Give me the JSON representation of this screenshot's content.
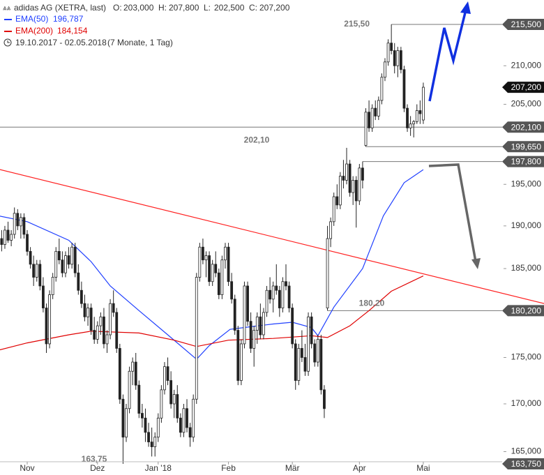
{
  "chart_data": {
    "type": "candlestick",
    "log": true,
    "header": {
      "title": "adidas AG (XETRA, last)",
      "quotes": [
        {
          "key": "O:",
          "label": "203,000"
        },
        {
          "key": "H:",
          "label": "207,800"
        },
        {
          "key": "L:",
          "label": "202,500"
        },
        {
          "key": "C:",
          "label": "207,200"
        }
      ],
      "range": "19.10.2017 - 02.05.2018",
      "period": "(7 Monate, 1 Tag)"
    },
    "ylim": [
      163.96,
      218.81
    ],
    "yticks": [
      {
        "value": 165,
        "label": "165,000"
      },
      {
        "value": 170,
        "label": "170,000"
      },
      {
        "value": 175,
        "label": "175,000"
      },
      {
        "value": 185,
        "label": "185,000"
      },
      {
        "value": 190,
        "label": "190,000"
      },
      {
        "value": 195,
        "label": "195,000"
      },
      {
        "value": 205,
        "label": "205,000"
      },
      {
        "value": 210,
        "label": "210,000"
      }
    ],
    "levels": [
      {
        "value": 215.5,
        "label": "215,500",
        "text": "215,50",
        "line": true
      },
      {
        "value": 202.1,
        "label": "202,100",
        "text": "202,10",
        "line": true
      },
      {
        "value": 199.65,
        "label": "199,650",
        "line": true
      },
      {
        "value": 197.8,
        "label": "197,800",
        "line": true
      },
      {
        "value": 180.2,
        "label": "180,200",
        "text": "180,20",
        "line": true
      },
      {
        "value": 163.75,
        "label": "163,750",
        "text": "163,75",
        "line": false
      }
    ],
    "categories": [
      null,
      null,
      null,
      null,
      null,
      null,
      null,
      null,
      null,
      "Nov",
      null,
      null,
      null,
      null,
      null,
      null,
      null,
      null,
      null,
      null,
      null,
      null,
      null,
      null,
      null,
      null,
      null,
      null,
      null,
      null,
      null,
      "Dez",
      null,
      null,
      null,
      null,
      null,
      null,
      null,
      null,
      null,
      null,
      null,
      null,
      null,
      null,
      null,
      null,
      null,
      null,
      "Jan '18",
      null,
      null,
      null,
      null,
      null,
      null,
      null,
      null,
      null,
      null,
      null,
      null,
      null,
      null,
      null,
      null,
      null,
      null,
      null,
      null,
      null,
      "Feb",
      null,
      null,
      null,
      null,
      null,
      null,
      null,
      null,
      null,
      null,
      null,
      null,
      null,
      null,
      null,
      null,
      null,
      null,
      null,
      "Mär",
      null,
      null,
      null,
      null,
      null,
      null,
      null,
      null,
      null,
      null,
      null,
      null,
      null,
      null,
      null,
      null,
      null,
      null,
      null,
      null,
      "Apr",
      null,
      null,
      null,
      null,
      null,
      null,
      null,
      null,
      null,
      null,
      null,
      null,
      null,
      null,
      null,
      null,
      null,
      null,
      null,
      "Mai"
    ],
    "open": [
      189.5,
      188.5,
      187.8,
      189.5,
      188.3,
      189,
      191.5,
      190,
      191,
      189,
      187,
      185.5,
      184,
      185.5,
      183,
      180.5,
      176.5,
      182,
      184,
      187,
      186,
      184.5,
      186.5,
      185.5,
      187.5,
      184.5,
      182.5,
      181,
      179.5,
      180.5,
      178,
      177,
      178.5,
      179.5,
      176.5,
      177.5,
      181,
      180,
      176,
      170.5,
      166.5,
      169.5,
      173.5,
      174.5,
      172,
      169,
      168.5,
      167,
      166,
      165.5,
      166.5,
      168.5,
      171.5,
      174,
      172.5,
      170,
      171,
      168.5,
      167,
      169.5,
      167.5,
      166.5,
      170.5,
      184,
      187.5,
      186,
      186.5,
      183.5,
      185.5,
      184.5,
      182,
      186,
      187.5,
      183.5,
      181.5,
      178,
      172.5,
      176.5,
      183,
      179,
      176,
      178,
      179.5,
      177.5,
      180,
      182.5,
      181.5,
      183,
      182.5,
      180.5,
      183.5,
      183,
      180.5,
      176.5,
      172.5,
      176,
      175,
      173.5,
      179.5,
      176.5,
      174.5,
      177,
      171.5,
      180.5,
      188.5,
      190.5,
      193.5,
      192.5,
      196,
      195.5,
      197.5,
      194,
      195.5,
      193,
      197,
      199.8,
      204,
      202,
      204.5,
      203.5,
      205.5,
      208.5,
      210.5,
      213,
      212,
      210,
      212,
      209.5,
      204.5,
      202,
      202.5,
      202.8,
      204.2,
      203
    ],
    "high": [
      191,
      189.5,
      190,
      190.5,
      189.5,
      192.2,
      192,
      191.5,
      191.5,
      189.5,
      187.5,
      186.5,
      186,
      186,
      184,
      181,
      182.5,
      184.5,
      187.5,
      188.5,
      187,
      187,
      187.5,
      188,
      188,
      185.5,
      183.5,
      182,
      181,
      181,
      179.5,
      179,
      180,
      180.5,
      178,
      181.5,
      182.5,
      180.5,
      176.5,
      171,
      170,
      174,
      175,
      175.5,
      172.5,
      170,
      169.5,
      168,
      167.5,
      167,
      169,
      172,
      174.5,
      175,
      173.5,
      171.5,
      172,
      169,
      170,
      170.5,
      168,
      171,
      184.5,
      188,
      188.5,
      187,
      187,
      186,
      187,
      185,
      186.5,
      188,
      188,
      184.5,
      182,
      178.5,
      177,
      183.5,
      183.5,
      180,
      178.5,
      180,
      181,
      180.5,
      183,
      184,
      183.5,
      185.5,
      183,
      184,
      185.5,
      183.5,
      181,
      177,
      176.5,
      178,
      176.5,
      180,
      180,
      177,
      177.5,
      177.5,
      172,
      190,
      191,
      194,
      195,
      196.5,
      198,
      199.5,
      198,
      196,
      196,
      197.5,
      197.8,
      204.5,
      205.5,
      205,
      205.5,
      206,
      209,
      211,
      213.5,
      215.5,
      213,
      212.5,
      212.5,
      210,
      205,
      203.5,
      203,
      205,
      205.5,
      207.8
    ],
    "low": [
      187.5,
      187,
      187.3,
      188,
      187.6,
      188.5,
      189.5,
      188.5,
      188.5,
      186.5,
      185,
      183,
      183.5,
      182.5,
      180,
      175.5,
      176,
      181.5,
      183.5,
      185.5,
      184,
      184,
      185,
      185,
      184,
      182,
      180.5,
      179,
      178.5,
      177.5,
      176.5,
      176.5,
      177.5,
      176,
      175.5,
      177,
      179.5,
      175.5,
      170,
      163.75,
      166,
      169,
      172,
      171.5,
      168.5,
      167.5,
      166,
      165.5,
      164.5,
      164.5,
      166,
      168,
      171,
      172,
      169.5,
      168.5,
      168,
      166.5,
      166.5,
      167,
      165.5,
      166,
      170,
      183.5,
      185.5,
      184,
      183,
      183,
      184,
      181.5,
      181.5,
      185,
      183,
      181,
      177.5,
      172,
      172,
      176,
      178.5,
      175.5,
      174,
      176.5,
      177,
      177,
      179.5,
      181,
      180,
      182,
      179.5,
      180,
      182.5,
      180,
      176,
      171.5,
      172,
      174.5,
      173,
      173,
      176,
      174,
      174,
      171,
      168.5,
      180.2,
      187.5,
      190,
      192,
      192,
      194.5,
      195,
      193.5,
      192.5,
      189.8,
      192.5,
      194.5,
      199.65,
      201.5,
      201.5,
      203,
      203,
      205,
      208,
      210,
      211.5,
      209,
      208.5,
      209,
      204,
      201.5,
      201,
      200.8,
      202.5,
      202.5,
      202.5
    ],
    "close": [
      188.5,
      187.8,
      189.5,
      188.3,
      189,
      191.5,
      190,
      191,
      189,
      187,
      185.5,
      184,
      185.5,
      183,
      180.5,
      176.5,
      182,
      184,
      187,
      186,
      184.5,
      186.5,
      185.5,
      187.5,
      184.5,
      182.5,
      181,
      179.5,
      180.5,
      178,
      177,
      178.5,
      179.5,
      176.5,
      177.5,
      181,
      180,
      176,
      170.5,
      166.5,
      169.5,
      173.5,
      174.5,
      172,
      169,
      168.5,
      167,
      166,
      165.5,
      166.5,
      168.5,
      171.5,
      174,
      172.5,
      170,
      171,
      168.5,
      167,
      169.5,
      167.5,
      166.5,
      170.5,
      184,
      187.5,
      186,
      186.5,
      183.5,
      185.5,
      184.5,
      182,
      186,
      187.5,
      183.5,
      181.5,
      178,
      172.5,
      176.5,
      183,
      179,
      176,
      178,
      179.5,
      177.5,
      180,
      182.5,
      181.5,
      183,
      182.5,
      180.5,
      183.5,
      183,
      180.5,
      176.5,
      172.5,
      176,
      175,
      173.5,
      179.5,
      176.5,
      174.5,
      177,
      171.5,
      169.5,
      188.5,
      190.5,
      193.5,
      192.5,
      196,
      195.5,
      197.5,
      194,
      195.5,
      193,
      197,
      195.5,
      204,
      202,
      204.5,
      203.5,
      205.5,
      208.5,
      210.5,
      213,
      212,
      210,
      212,
      209.5,
      204.5,
      202,
      202.5,
      202.8,
      204.2,
      203.8,
      207.2
    ],
    "series": [
      {
        "name": "EMA(50)",
        "color": "#2040ff",
        "last_label": "196,787",
        "x": [
          0,
          9,
          22,
          29,
          35,
          44,
          53,
          62,
          66,
          72.5,
          79,
          86,
          92,
          98,
          100,
          105,
          114,
          120.5,
          127,
          133
        ],
        "values": [
          191.2,
          190.5,
          188.3,
          185.8,
          183.0,
          180.2,
          177.5,
          174.8,
          176.3,
          178.1,
          178.4,
          178.7,
          178.9,
          178.3,
          177.4,
          180.6,
          185.0,
          191.2,
          195.2,
          196.787
        ]
      },
      {
        "name": "EMA(200)",
        "color": "#e00000",
        "last_label": "184,154",
        "x": [
          0,
          9,
          22,
          29,
          44,
          55,
          62,
          72,
          86,
          98,
          103,
          110,
          116,
          123,
          133
        ],
        "values": [
          175.8,
          176.6,
          177.5,
          177.9,
          177.7,
          176.9,
          176.2,
          176.9,
          177.1,
          177.4,
          177.2,
          178.5,
          180.2,
          182.4,
          184.154
        ]
      }
    ],
    "trendline": {
      "color": "#ff2020",
      "x": [
        -0.5,
        170.8
      ],
      "values": [
        196.9,
        181.0
      ]
    }
  }
}
